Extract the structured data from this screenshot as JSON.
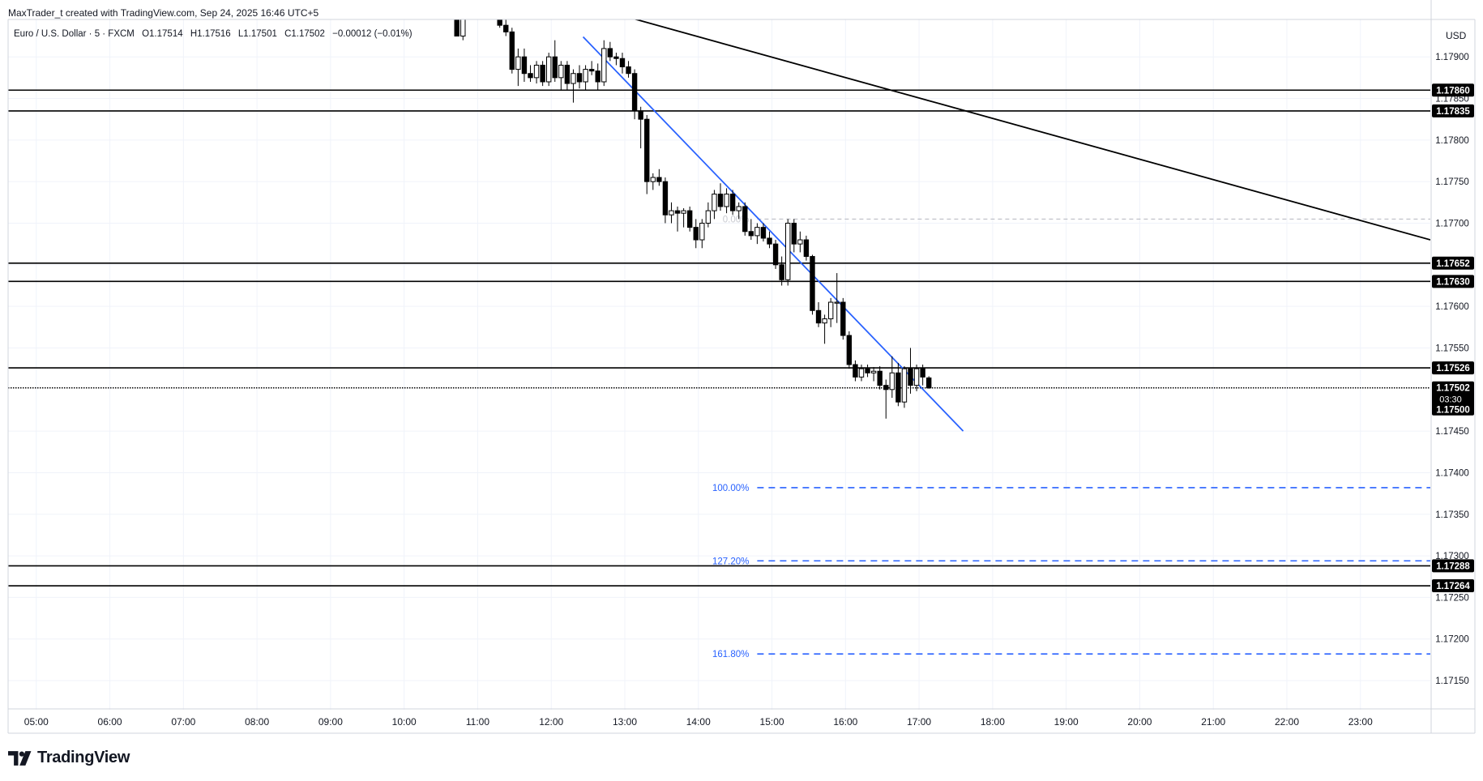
{
  "header": {
    "credit": "MaxTrader_t created with TradingView.com, Sep 24, 2025 16:46 UTC+5"
  },
  "symbol": {
    "name": "Euro / U.S. Dollar · 5 · FXCM",
    "open": "O1.17514",
    "high": "H1.17516",
    "low": "L1.17501",
    "close": "C1.17502",
    "change": "−0.00012 (−0.01%)"
  },
  "currency_label": "USD",
  "countdown": "03:30",
  "brand": {
    "name": "TradingView"
  },
  "colors": {
    "up_candle": "#ffffff",
    "down_candle": "#000000",
    "trendline_blue": "#2962ff",
    "level_line": "#000000",
    "fib_level": "#2962ff",
    "grid": "#f0f3fa"
  },
  "chart_data": {
    "type": "candlestick",
    "instrument": "EUR/USD",
    "timeframe": "5",
    "x_ticks": [
      "05:00",
      "06:00",
      "07:00",
      "08:00",
      "09:00",
      "10:00",
      "11:00",
      "12:00",
      "13:00",
      "14:00",
      "15:00",
      "16:00",
      "17:00",
      "18:00",
      "19:00",
      "20:00",
      "21:00",
      "22:00",
      "23:00"
    ],
    "y_ticks": [
      "1.17900",
      "1.17850",
      "1.17800",
      "1.17750",
      "1.17700",
      "1.17650",
      "1.17600",
      "1.17550",
      "1.17450",
      "1.17400",
      "1.17350",
      "1.17300",
      "1.17250",
      "1.17200",
      "1.17150"
    ],
    "ylim": [
      1.17115,
      1.17945
    ],
    "xlim": [
      "04:37",
      "23:57"
    ],
    "horizontal_levels": [
      {
        "price": 1.1786,
        "label": "1.17860"
      },
      {
        "price": 1.17835,
        "label": "1.17835"
      },
      {
        "price": 1.17652,
        "label": "1.17652"
      },
      {
        "price": 1.1763,
        "label": "1.17630"
      },
      {
        "price": 1.17526,
        "label": "1.17526"
      },
      {
        "price": 1.17288,
        "label": "1.17288"
      },
      {
        "price": 1.17264,
        "label": "1.17264"
      }
    ],
    "last_price": {
      "price": 1.17502,
      "label": "1.17502"
    },
    "price_tag_below": {
      "price": 1.175,
      "label": "1.17500"
    },
    "fib_levels": [
      {
        "label": "0.00%",
        "price": 1.17705,
        "start": "14:48",
        "style": "dashed-gray"
      },
      {
        "label": "100.00%",
        "price": 1.17382,
        "start": "14:48",
        "style": "dashed-blue"
      },
      {
        "label": "127.20%",
        "price": 1.17294,
        "start": "14:48",
        "style": "dashed-blue"
      },
      {
        "label": "161.80%",
        "price": 1.17182,
        "start": "14:48",
        "style": "dashed-blue"
      }
    ],
    "trendlines": [
      {
        "color": "black",
        "from": [
          "12:57",
          1.1795
        ],
        "to": [
          "23:57",
          1.1768
        ]
      },
      {
        "color": "blue",
        "from": [
          "12:26",
          1.17924
        ],
        "to": [
          "17:36",
          1.1745
        ]
      }
    ],
    "candles": [
      {
        "t": "10:43",
        "o": 1.1795,
        "h": 1.17955,
        "l": 1.17925,
        "c": 1.17925
      },
      {
        "t": "10:48",
        "o": 1.17925,
        "h": 1.17955,
        "l": 1.1792,
        "c": 1.1795
      },
      {
        "t": "11:13",
        "o": 1.1795,
        "h": 1.17955,
        "l": 1.17945,
        "c": 1.17945
      },
      {
        "t": "11:18",
        "o": 1.17945,
        "h": 1.1795,
        "l": 1.17935,
        "c": 1.17938
      },
      {
        "t": "11:23",
        "o": 1.17938,
        "h": 1.17945,
        "l": 1.17925,
        "c": 1.1793
      },
      {
        "t": "11:28",
        "o": 1.1793,
        "h": 1.17935,
        "l": 1.1788,
        "c": 1.17885
      },
      {
        "t": "11:33",
        "o": 1.17885,
        "h": 1.1791,
        "l": 1.17865,
        "c": 1.179
      },
      {
        "t": "11:38",
        "o": 1.179,
        "h": 1.1791,
        "l": 1.1787,
        "c": 1.1788
      },
      {
        "t": "11:43",
        "o": 1.1788,
        "h": 1.1789,
        "l": 1.1787,
        "c": 1.17875
      },
      {
        "t": "11:48",
        "o": 1.17875,
        "h": 1.17895,
        "l": 1.17868,
        "c": 1.1789
      },
      {
        "t": "11:53",
        "o": 1.1789,
        "h": 1.17895,
        "l": 1.17865,
        "c": 1.1787
      },
      {
        "t": "11:58",
        "o": 1.1787,
        "h": 1.17905,
        "l": 1.17865,
        "c": 1.179
      },
      {
        "t": "12:03",
        "o": 1.179,
        "h": 1.1792,
        "l": 1.1787,
        "c": 1.17875
      },
      {
        "t": "12:08",
        "o": 1.17875,
        "h": 1.17895,
        "l": 1.1786,
        "c": 1.1789
      },
      {
        "t": "12:13",
        "o": 1.1789,
        "h": 1.17895,
        "l": 1.1786,
        "c": 1.17868
      },
      {
        "t": "12:18",
        "o": 1.17868,
        "h": 1.17885,
        "l": 1.17845,
        "c": 1.1788
      },
      {
        "t": "12:23",
        "o": 1.1788,
        "h": 1.1789,
        "l": 1.17862,
        "c": 1.1787
      },
      {
        "t": "12:28",
        "o": 1.1787,
        "h": 1.1789,
        "l": 1.1786,
        "c": 1.17885
      },
      {
        "t": "12:33",
        "o": 1.17885,
        "h": 1.17895,
        "l": 1.17878,
        "c": 1.17883
      },
      {
        "t": "12:38",
        "o": 1.17883,
        "h": 1.17892,
        "l": 1.1786,
        "c": 1.1787
      },
      {
        "t": "12:43",
        "o": 1.1787,
        "h": 1.1792,
        "l": 1.17865,
        "c": 1.1791
      },
      {
        "t": "12:48",
        "o": 1.1791,
        "h": 1.17918,
        "l": 1.17895,
        "c": 1.179
      },
      {
        "t": "12:53",
        "o": 1.179,
        "h": 1.17905,
        "l": 1.1789,
        "c": 1.17898
      },
      {
        "t": "12:58",
        "o": 1.17898,
        "h": 1.17905,
        "l": 1.1788,
        "c": 1.17888
      },
      {
        "t": "13:03",
        "o": 1.17888,
        "h": 1.17895,
        "l": 1.17875,
        "c": 1.1788
      },
      {
        "t": "13:08",
        "o": 1.1788,
        "h": 1.17885,
        "l": 1.17825,
        "c": 1.17835
      },
      {
        "t": "13:13",
        "o": 1.17835,
        "h": 1.1784,
        "l": 1.1779,
        "c": 1.17825
      },
      {
        "t": "13:18",
        "o": 1.17825,
        "h": 1.1783,
        "l": 1.17735,
        "c": 1.1775
      },
      {
        "t": "13:23",
        "o": 1.1775,
        "h": 1.1776,
        "l": 1.1774,
        "c": 1.17755
      },
      {
        "t": "13:28",
        "o": 1.17755,
        "h": 1.17765,
        "l": 1.17745,
        "c": 1.1775
      },
      {
        "t": "13:33",
        "o": 1.1775,
        "h": 1.17755,
        "l": 1.177,
        "c": 1.1771
      },
      {
        "t": "13:38",
        "o": 1.1771,
        "h": 1.17725,
        "l": 1.177,
        "c": 1.17715
      },
      {
        "t": "13:43",
        "o": 1.17715,
        "h": 1.1772,
        "l": 1.1769,
        "c": 1.17712
      },
      {
        "t": "13:48",
        "o": 1.17712,
        "h": 1.17718,
        "l": 1.17695,
        "c": 1.17715
      },
      {
        "t": "13:53",
        "o": 1.17715,
        "h": 1.1772,
        "l": 1.1769,
        "c": 1.17695
      },
      {
        "t": "13:58",
        "o": 1.17695,
        "h": 1.17705,
        "l": 1.1767,
        "c": 1.1768
      },
      {
        "t": "14:03",
        "o": 1.1768,
        "h": 1.17705,
        "l": 1.1767,
        "c": 1.177
      },
      {
        "t": "14:08",
        "o": 1.177,
        "h": 1.17725,
        "l": 1.17695,
        "c": 1.17715
      },
      {
        "t": "14:13",
        "o": 1.17715,
        "h": 1.1774,
        "l": 1.17705,
        "c": 1.17735
      },
      {
        "t": "14:18",
        "o": 1.17735,
        "h": 1.17748,
        "l": 1.17715,
        "c": 1.1772
      },
      {
        "t": "14:23",
        "o": 1.1772,
        "h": 1.17742,
        "l": 1.17712,
        "c": 1.17735
      },
      {
        "t": "14:28",
        "o": 1.17735,
        "h": 1.1774,
        "l": 1.1771,
        "c": 1.17715
      },
      {
        "t": "14:33",
        "o": 1.17715,
        "h": 1.17725,
        "l": 1.17705,
        "c": 1.1772
      },
      {
        "t": "14:38",
        "o": 1.1772,
        "h": 1.17725,
        "l": 1.17685,
        "c": 1.1769
      },
      {
        "t": "14:43",
        "o": 1.1769,
        "h": 1.17705,
        "l": 1.1768,
        "c": 1.17685
      },
      {
        "t": "14:48",
        "o": 1.17685,
        "h": 1.177,
        "l": 1.17675,
        "c": 1.17695
      },
      {
        "t": "14:53",
        "o": 1.17695,
        "h": 1.177,
        "l": 1.17678,
        "c": 1.17682
      },
      {
        "t": "14:58",
        "o": 1.17682,
        "h": 1.1769,
        "l": 1.1767,
        "c": 1.17675
      },
      {
        "t": "15:03",
        "o": 1.17675,
        "h": 1.1768,
        "l": 1.17645,
        "c": 1.1765
      },
      {
        "t": "15:08",
        "o": 1.1765,
        "h": 1.1766,
        "l": 1.17625,
        "c": 1.17632
      },
      {
        "t": "15:13",
        "o": 1.17632,
        "h": 1.17705,
        "l": 1.17625,
        "c": 1.177
      },
      {
        "t": "15:18",
        "o": 1.177,
        "h": 1.17705,
        "l": 1.17665,
        "c": 1.17675
      },
      {
        "t": "15:23",
        "o": 1.17675,
        "h": 1.1769,
        "l": 1.17665,
        "c": 1.1768
      },
      {
        "t": "15:28",
        "o": 1.1768,
        "h": 1.17685,
        "l": 1.17655,
        "c": 1.1766
      },
      {
        "t": "15:33",
        "o": 1.1766,
        "h": 1.17662,
        "l": 1.1759,
        "c": 1.17595
      },
      {
        "t": "15:38",
        "o": 1.17595,
        "h": 1.17605,
        "l": 1.17575,
        "c": 1.1758
      },
      {
        "t": "15:43",
        "o": 1.1758,
        "h": 1.1759,
        "l": 1.17555,
        "c": 1.17585
      },
      {
        "t": "15:48",
        "o": 1.17585,
        "h": 1.1761,
        "l": 1.17575,
        "c": 1.17605
      },
      {
        "t": "15:53",
        "o": 1.17605,
        "h": 1.1764,
        "l": 1.1758,
        "c": 1.17605
      },
      {
        "t": "15:58",
        "o": 1.17605,
        "h": 1.1761,
        "l": 1.1756,
        "c": 1.17565
      },
      {
        "t": "16:03",
        "o": 1.17565,
        "h": 1.1757,
        "l": 1.17525,
        "c": 1.1753
      },
      {
        "t": "16:08",
        "o": 1.1753,
        "h": 1.17535,
        "l": 1.1751,
        "c": 1.17515
      },
      {
        "t": "16:13",
        "o": 1.17515,
        "h": 1.1753,
        "l": 1.1751,
        "c": 1.17525
      },
      {
        "t": "16:18",
        "o": 1.17525,
        "h": 1.1753,
        "l": 1.17515,
        "c": 1.1752
      },
      {
        "t": "16:23",
        "o": 1.1752,
        "h": 1.17527,
        "l": 1.1751,
        "c": 1.17522
      },
      {
        "t": "16:28",
        "o": 1.17522,
        "h": 1.17528,
        "l": 1.175,
        "c": 1.17505
      },
      {
        "t": "16:33",
        "o": 1.17505,
        "h": 1.17512,
        "l": 1.17465,
        "c": 1.175
      },
      {
        "t": "16:38",
        "o": 1.175,
        "h": 1.1754,
        "l": 1.1749,
        "c": 1.1752
      },
      {
        "t": "16:43",
        "o": 1.1752,
        "h": 1.17532,
        "l": 1.1748,
        "c": 1.17485
      },
      {
        "t": "16:48",
        "o": 1.17485,
        "h": 1.17528,
        "l": 1.17478,
        "c": 1.17525
      },
      {
        "t": "16:53",
        "o": 1.17525,
        "h": 1.1755,
        "l": 1.17495,
        "c": 1.17505
      },
      {
        "t": "16:58",
        "o": 1.17505,
        "h": 1.1753,
        "l": 1.17498,
        "c": 1.17525
      },
      {
        "t": "17:03",
        "o": 1.17525,
        "h": 1.1753,
        "l": 1.17505,
        "c": 1.17515
      },
      {
        "t": "17:08",
        "o": 1.17514,
        "h": 1.17516,
        "l": 1.17501,
        "c": 1.17502
      }
    ]
  }
}
